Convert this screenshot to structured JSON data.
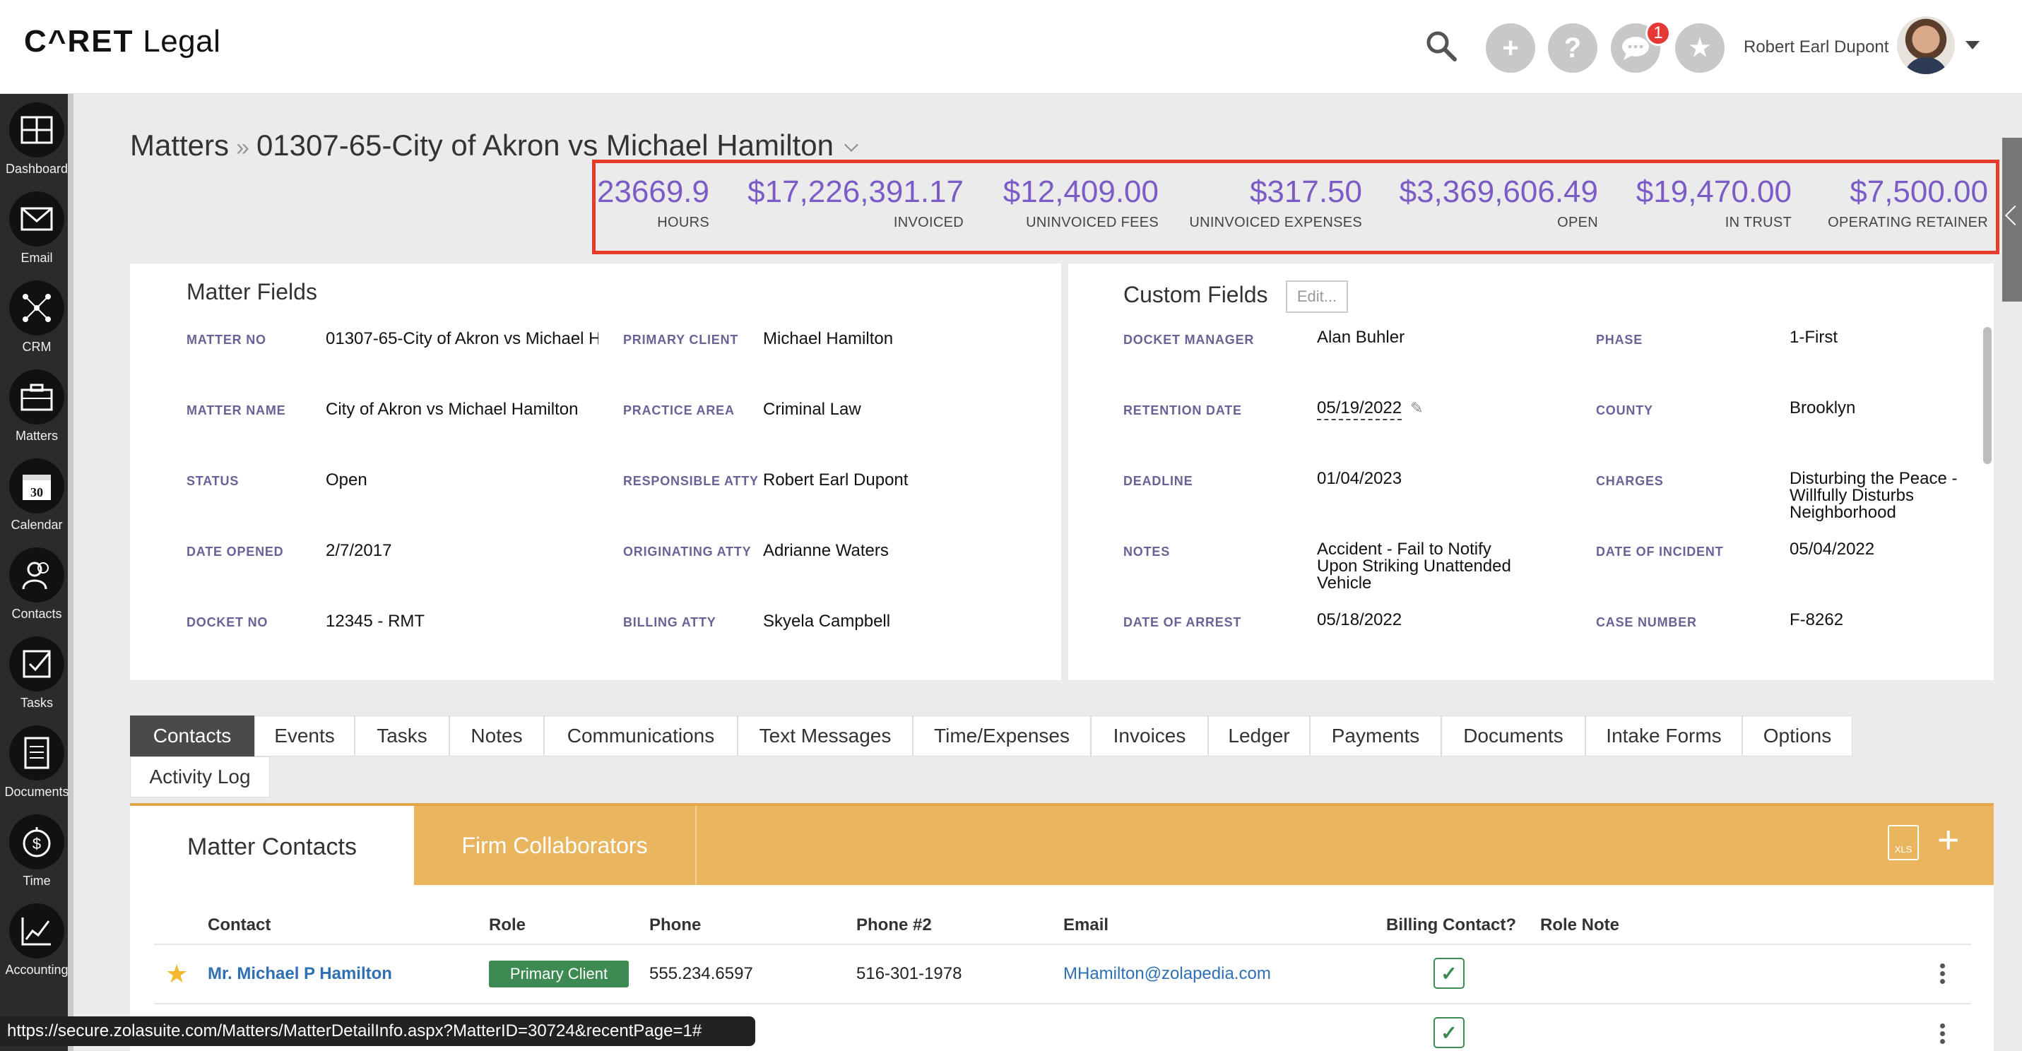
{
  "app": {
    "logo_caret": "C^RET",
    "logo_legal": "Legal",
    "user_name": "Robert Earl Dupont",
    "notification_count": "1"
  },
  "sidebar": {
    "items": [
      {
        "label": "Dashboard",
        "icon": "dashboard-icon"
      },
      {
        "label": "Email",
        "icon": "envelope-icon"
      },
      {
        "label": "CRM",
        "icon": "network-icon"
      },
      {
        "label": "Matters",
        "icon": "briefcase-icon"
      },
      {
        "label": "Calendar",
        "icon": "calendar-icon",
        "day": "30"
      },
      {
        "label": "Contacts",
        "icon": "contacts-icon"
      },
      {
        "label": "Tasks",
        "icon": "task-check-icon"
      },
      {
        "label": "Documents",
        "icon": "document-icon"
      },
      {
        "label": "Time",
        "icon": "stopwatch-dollar-icon"
      },
      {
        "label": "Accounting",
        "icon": "line-chart-icon"
      }
    ]
  },
  "breadcrumb": {
    "root": "Matters",
    "separator": "»",
    "current": "01307-65-City of Akron vs Michael Hamilton"
  },
  "stats": [
    {
      "value": "23669.9",
      "label": "HOURS"
    },
    {
      "value": "$17,226,391.17",
      "label": "INVOICED"
    },
    {
      "value": "$12,409.00",
      "label": "UNINVOICED FEES"
    },
    {
      "value": "$317.50",
      "label": "UNINVOICED EXPENSES"
    },
    {
      "value": "$3,369,606.49",
      "label": "OPEN"
    },
    {
      "value": "$19,470.00",
      "label": "IN TRUST"
    },
    {
      "value": "$7,500.00",
      "label": "OPERATING RETAINER"
    }
  ],
  "matter_fields": {
    "title": "Matter Fields",
    "left": [
      {
        "label": "MATTER NO",
        "value": "01307-65-City of Akron vs Michael H"
      },
      {
        "label": "MATTER NAME",
        "value": "City of Akron vs Michael Hamilton"
      },
      {
        "label": "STATUS",
        "value": "Open"
      },
      {
        "label": "DATE OPENED",
        "value": "2/7/2017"
      },
      {
        "label": "DOCKET NO",
        "value": "12345 - RMT"
      }
    ],
    "right": [
      {
        "label": "PRIMARY CLIENT",
        "value": "Michael Hamilton"
      },
      {
        "label": "PRACTICE AREA",
        "value": "Criminal Law"
      },
      {
        "label": "RESPONSIBLE ATTY",
        "value": "Robert Earl Dupont"
      },
      {
        "label": "ORIGINATING ATTY",
        "value": "Adrianne Waters"
      },
      {
        "label": "BILLING ATTY",
        "value": "Skyela Campbell"
      }
    ]
  },
  "custom_fields": {
    "title": "Custom Fields",
    "edit_label": "Edit...",
    "left": [
      {
        "label": "DOCKET MANAGER",
        "value": "Alan Buhler"
      },
      {
        "label": "RETENTION DATE",
        "value": "05/19/2022"
      },
      {
        "label": "DEADLINE",
        "value": "01/04/2023"
      },
      {
        "label": "NOTES",
        "value": "Accident - Fail to Notify Upon Striking Unattended Vehicle"
      },
      {
        "label": "DATE OF ARREST",
        "value": "05/18/2022"
      }
    ],
    "right": [
      {
        "label": "PHASE",
        "value": "1-First"
      },
      {
        "label": "COUNTY",
        "value": "Brooklyn"
      },
      {
        "label": "CHARGES",
        "value": "Disturbing the Peace - Willfully Disturbs Neighborhood"
      },
      {
        "label": "DATE OF INCIDENT",
        "value": "05/04/2022"
      },
      {
        "label": "CASE NUMBER",
        "value": "F-8262"
      }
    ]
  },
  "tabs": [
    "Contacts",
    "Events",
    "Tasks",
    "Notes",
    "Communications",
    "Text Messages",
    "Time/Expenses",
    "Invoices",
    "Ledger",
    "Payments",
    "Documents",
    "Intake Forms",
    "Options",
    "Activity Log"
  ],
  "contacts_panel": {
    "tab_active": "Matter Contacts",
    "tab_other": "Firm Collaborators",
    "xls_label": "XLS",
    "columns": [
      "Contact",
      "Role",
      "Phone",
      "Phone #2",
      "Email",
      "Billing Contact?",
      "Role Note"
    ],
    "rows": [
      {
        "contact": "Mr. Michael P Hamilton",
        "role": "Primary Client",
        "phone": "555.234.6597",
        "phone2": "516-301-1978",
        "email": "MHamilton@zolapedia.com",
        "billing_contact": true,
        "role_note": ""
      }
    ]
  },
  "status_bar": {
    "url": "https://secure.zolasuite.com/Matters/MatterDetailInfo.aspx?MatterID=30724&recentPage=1#"
  },
  "colors": {
    "stat_purple": "#7b5cc7",
    "highlight_red": "#e53b2a",
    "ribbon_orange": "#e9b55f",
    "badge_green": "#3d8b52",
    "link_blue": "#2f6fb3"
  }
}
